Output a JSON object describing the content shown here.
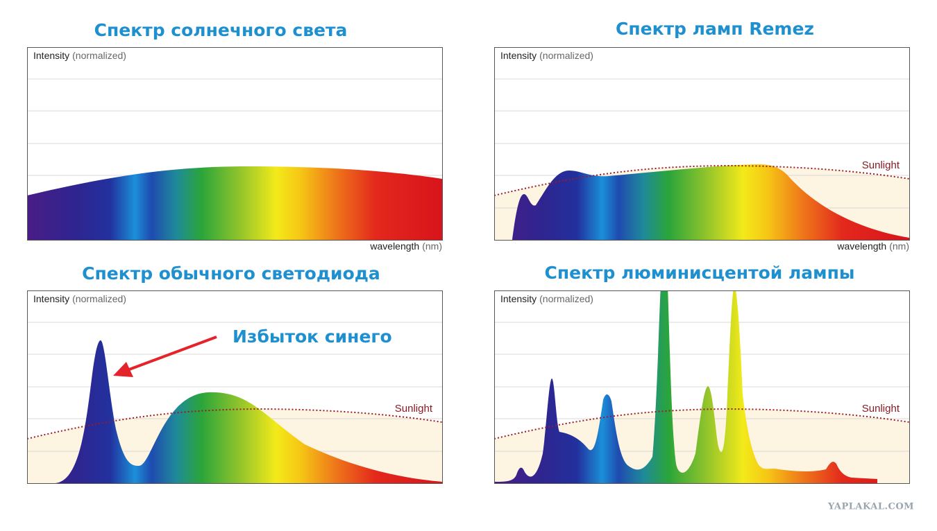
{
  "panels": [
    {
      "title": "Спектр солнечного света",
      "y_label": "Intensity",
      "y_label_note": "(normalized)",
      "x_label": "wavelength",
      "x_label_note": "(nm)"
    },
    {
      "title": "Спектр ламп Remez",
      "y_label": "Intensity",
      "y_label_note": "(normalized)",
      "x_label": "wavelength",
      "x_label_note": "(nm)",
      "reference": "Sunlight"
    },
    {
      "title": "Спектр обычного светодиода",
      "y_label": "Intensity",
      "y_label_note": "(normalized)",
      "reference": "Sunlight",
      "annotation": "Избыток синего"
    },
    {
      "title": "Спектр люминисцентой лампы",
      "y_label": "Intensity",
      "y_label_note": "(normalized)",
      "reference": "Sunlight"
    }
  ],
  "watermark": "YAPLAKAL.COM"
}
